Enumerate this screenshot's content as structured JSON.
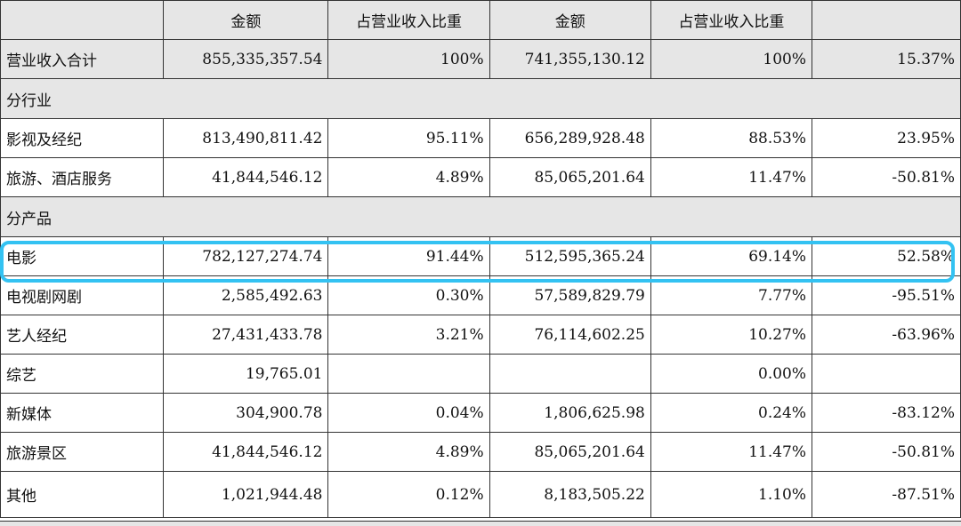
{
  "header": [
    "",
    "金额",
    "占营业收入比重",
    "金额",
    "占营业收入比重",
    ""
  ],
  "total_row": {
    "label": "营业收入合计",
    "amount_a": "855,335,357.54",
    "share_a": "100%",
    "amount_b": "741,355,130.12",
    "share_b": "100%",
    "change": "15.37%"
  },
  "section_industry": "分行业",
  "industry_rows": [
    {
      "label": "影视及经纪",
      "amount_a": "813,490,811.42",
      "share_a": "95.11%",
      "amount_b": "656,289,928.48",
      "share_b": "88.53%",
      "change": "23.95%"
    },
    {
      "label": "旅游、酒店服务",
      "amount_a": "41,844,546.12",
      "share_a": "4.89%",
      "amount_b": "85,065,201.64",
      "share_b": "11.47%",
      "change": "-50.81%"
    }
  ],
  "section_product": "分产品",
  "product_rows": [
    {
      "label": "电影",
      "amount_a": "782,127,274.74",
      "share_a": "91.44%",
      "amount_b": "512,595,365.24",
      "share_b": "69.14%",
      "change": "52.58%"
    },
    {
      "label": "电视剧网剧",
      "amount_a": "2,585,492.63",
      "share_a": "0.30%",
      "amount_b": "57,589,829.79",
      "share_b": "7.77%",
      "change": "-95.51%"
    },
    {
      "label": "艺人经纪",
      "amount_a": "27,431,433.78",
      "share_a": "3.21%",
      "amount_b": "76,114,602.25",
      "share_b": "10.27%",
      "change": "-63.96%"
    },
    {
      "label": "综艺",
      "amount_a": "19,765.01",
      "share_a": "",
      "amount_b": "",
      "share_b": "0.00%",
      "change": ""
    },
    {
      "label": "新媒体",
      "amount_a": "304,900.78",
      "share_a": "0.04%",
      "amount_b": "1,806,625.98",
      "share_b": "0.24%",
      "change": "-83.12%"
    },
    {
      "label": "旅游景区",
      "amount_a": "41,844,546.12",
      "share_a": "4.89%",
      "amount_b": "85,065,201.64",
      "share_b": "11.47%",
      "change": "-50.81%"
    },
    {
      "label": "其他",
      "amount_a": "1,021,944.48",
      "share_a": "0.12%",
      "amount_b": "8,183,505.22",
      "share_b": "1.10%",
      "change": "-87.51%"
    }
  ],
  "highlight_color": "#33c2f2"
}
